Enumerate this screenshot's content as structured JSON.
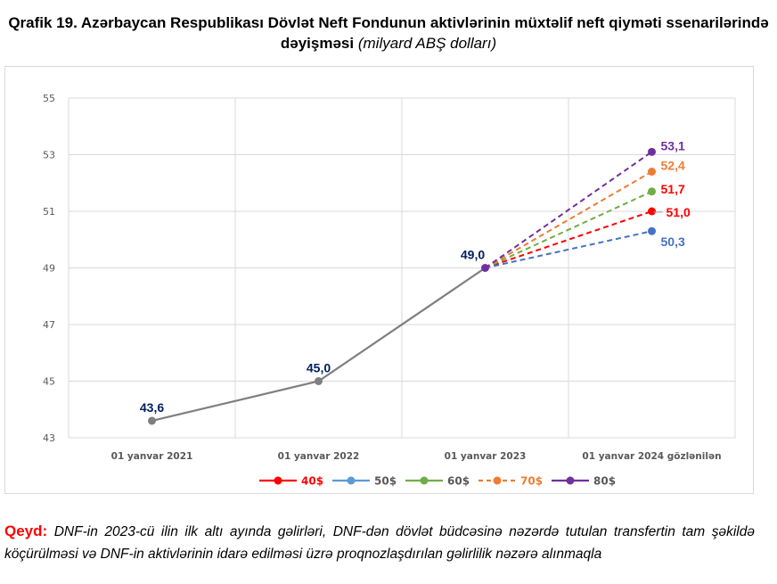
{
  "title": {
    "main": "Qrafik 19. Azərbaycan Respublikası Dövlət Neft Fondunun aktivlərinin müxtəlif neft qiyməti ssenarilərində dəyişməsi",
    "unit": "(milyard ABŞ dolları)"
  },
  "note": {
    "label": "Qeyd:",
    "text": "DNF-in 2023-cü ilin ilk altı ayında gəlirləri, DNF-dən dövlət büdcəsinə nəzərdə tutulan transfertin tam şəkildə köçürülməsi və DNF-in aktivlərinin idarə edilməsi üzrə proqnozlaşdırılan gəlirlilik nəzərə alınmaqla"
  },
  "chart_data": {
    "type": "line",
    "title": "Qrafik 19. Azərbaycan Respublikası Dövlət Neft Fondunun aktivlərinin müxtəlif neft qiyməti ssenarilərində dəyişməsi (milyard ABŞ dolları)",
    "xlabel": "",
    "ylabel": "",
    "categories": [
      "01 yanvar 2021",
      "01 yanvar 2022",
      "01 yanvar 2023",
      "01 yanvar 2024 gözlənilən"
    ],
    "ylim": [
      43,
      55
    ],
    "yticks": [
      "43",
      "45",
      "47",
      "49",
      "51",
      "53",
      "55"
    ],
    "grid": true,
    "legend_position": "bottom",
    "history": {
      "values": [
        43.6,
        45.0,
        49.0
      ],
      "labels": [
        "43,6",
        "45,0",
        "49,0"
      ],
      "color": "#7f7f7f",
      "label_color": "#002060"
    },
    "series": [
      {
        "name": "40$",
        "from": 49.0,
        "value": 51.0,
        "label": "51,0",
        "color": "#ff0000",
        "label_color": "#ff0000",
        "legend_text_color": "#ff0000",
        "legend_dashed": false
      },
      {
        "name": "50$",
        "from": 49.0,
        "value": 50.3,
        "label": "50,3",
        "color": "#4472c4",
        "label_color": "#4472c4",
        "legend_line_color": "#5b9bd5",
        "legend_text_color": "#595959",
        "legend_dashed": false
      },
      {
        "name": "60$",
        "from": 49.0,
        "value": 51.7,
        "label": "51,7",
        "color": "#70ad47",
        "label_color": "#ff0000",
        "legend_text_color": "#595959",
        "legend_dashed": false
      },
      {
        "name": "70$",
        "from": 49.0,
        "value": 52.4,
        "label": "52,4",
        "color": "#ed7d31",
        "label_color": "#ed7d31",
        "legend_text_color": "#ed7d31",
        "legend_dashed": true
      },
      {
        "name": "80$",
        "from": 49.0,
        "value": 53.1,
        "label": "53,1",
        "color": "#7030a0",
        "label_color": "#7030a0",
        "legend_text_color": "#595959",
        "legend_dashed": false
      }
    ]
  }
}
